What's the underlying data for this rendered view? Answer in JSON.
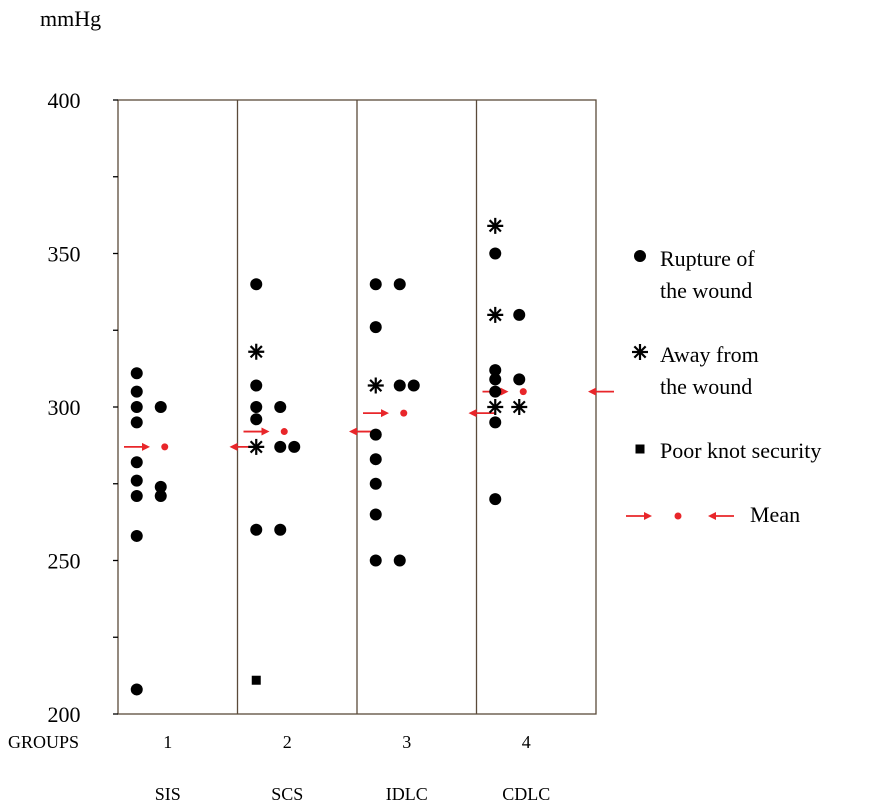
{
  "chart_data": {
    "type": "scatter",
    "ylabel": "mmHg",
    "ylim": [
      200,
      400
    ],
    "yticks": [
      200,
      250,
      300,
      350,
      400
    ],
    "xlabel": "GROUPS",
    "groups": [
      {
        "number": "1",
        "name": "SIS"
      },
      {
        "number": "2",
        "name": "SCS"
      },
      {
        "number": "3",
        "name": "IDLC"
      },
      {
        "number": "4",
        "name": "CDLC"
      }
    ],
    "legend": {
      "rupture": "Rupture of the wound",
      "away": "Away from the wound",
      "poor_knot": "Poor knot security",
      "mean": "Mean"
    },
    "colors": {
      "points": "#000000",
      "mean": "#e8262a",
      "frame": "#5a4a3a"
    },
    "series": [
      {
        "name": "Rupture of the wound",
        "marker": "circle",
        "points": [
          {
            "group": 1,
            "y": 311,
            "offset": "left"
          },
          {
            "group": 1,
            "y": 305,
            "offset": "left"
          },
          {
            "group": 1,
            "y": 300,
            "offset": "left"
          },
          {
            "group": 1,
            "y": 300,
            "offset": "right"
          },
          {
            "group": 1,
            "y": 295,
            "offset": "left"
          },
          {
            "group": 1,
            "y": 282,
            "offset": "left"
          },
          {
            "group": 1,
            "y": 276,
            "offset": "left"
          },
          {
            "group": 1,
            "y": 274,
            "offset": "right"
          },
          {
            "group": 1,
            "y": 271,
            "offset": "left"
          },
          {
            "group": 1,
            "y": 271,
            "offset": "right"
          },
          {
            "group": 1,
            "y": 258,
            "offset": "left"
          },
          {
            "group": 1,
            "y": 208,
            "offset": "left"
          },
          {
            "group": 2,
            "y": 340,
            "offset": "left"
          },
          {
            "group": 2,
            "y": 307,
            "offset": "left"
          },
          {
            "group": 2,
            "y": 300,
            "offset": "left"
          },
          {
            "group": 2,
            "y": 300,
            "offset": "right"
          },
          {
            "group": 2,
            "y": 296,
            "offset": "left"
          },
          {
            "group": 2,
            "y": 287,
            "offset": "right"
          },
          {
            "group": 2,
            "y": 287,
            "offset": "far-right"
          },
          {
            "group": 2,
            "y": 260,
            "offset": "left"
          },
          {
            "group": 2,
            "y": 260,
            "offset": "right"
          },
          {
            "group": 3,
            "y": 340,
            "offset": "left"
          },
          {
            "group": 3,
            "y": 340,
            "offset": "right"
          },
          {
            "group": 3,
            "y": 326,
            "offset": "left"
          },
          {
            "group": 3,
            "y": 307,
            "offset": "right"
          },
          {
            "group": 3,
            "y": 307,
            "offset": "far-right"
          },
          {
            "group": 3,
            "y": 291,
            "offset": "left"
          },
          {
            "group": 3,
            "y": 283,
            "offset": "left"
          },
          {
            "group": 3,
            "y": 275,
            "offset": "left"
          },
          {
            "group": 3,
            "y": 265,
            "offset": "left"
          },
          {
            "group": 3,
            "y": 250,
            "offset": "left"
          },
          {
            "group": 3,
            "y": 250,
            "offset": "right"
          },
          {
            "group": 4,
            "y": 350,
            "offset": "left"
          },
          {
            "group": 4,
            "y": 330,
            "offset": "right"
          },
          {
            "group": 4,
            "y": 312,
            "offset": "left"
          },
          {
            "group": 4,
            "y": 309,
            "offset": "left"
          },
          {
            "group": 4,
            "y": 309,
            "offset": "right"
          },
          {
            "group": 4,
            "y": 305,
            "offset": "left"
          },
          {
            "group": 4,
            "y": 295,
            "offset": "left"
          },
          {
            "group": 4,
            "y": 270,
            "offset": "left"
          }
        ]
      },
      {
        "name": "Away from the wound",
        "marker": "star",
        "points": [
          {
            "group": 2,
            "y": 318,
            "offset": "left"
          },
          {
            "group": 2,
            "y": 287,
            "offset": "left"
          },
          {
            "group": 3,
            "y": 307,
            "offset": "left"
          },
          {
            "group": 4,
            "y": 359,
            "offset": "left"
          },
          {
            "group": 4,
            "y": 330,
            "offset": "left"
          },
          {
            "group": 4,
            "y": 300,
            "offset": "left"
          },
          {
            "group": 4,
            "y": 300,
            "offset": "right"
          }
        ]
      },
      {
        "name": "Poor knot security",
        "marker": "square",
        "points": [
          {
            "group": 2,
            "y": 211,
            "offset": "left"
          }
        ]
      }
    ],
    "means": [
      {
        "group": 1,
        "y": 287
      },
      {
        "group": 2,
        "y": 292
      },
      {
        "group": 3,
        "y": 298
      },
      {
        "group": 4,
        "y": 305
      }
    ]
  }
}
